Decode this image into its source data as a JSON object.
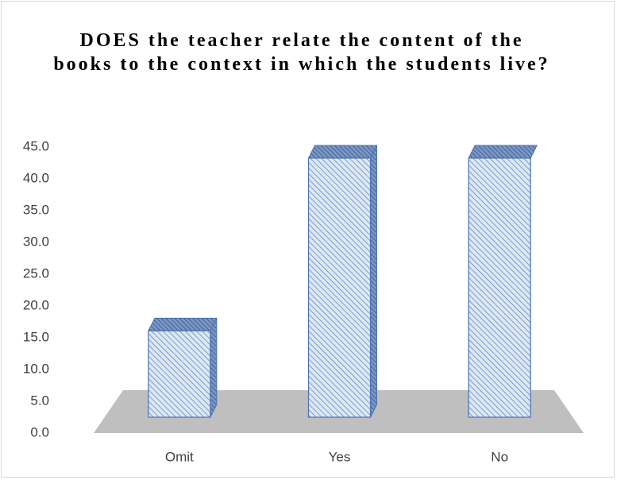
{
  "chart_data": {
    "type": "bar3d",
    "title": "DOES the teacher relate the content of the books to the context in which the students live?",
    "categories": [
      "Omit",
      "Yes",
      "No"
    ],
    "values": [
      14.3,
      42.9,
      42.9
    ],
    "color": "#4a72b0",
    "ylim": [
      0,
      45
    ],
    "yticks": [
      {
        "value": 0,
        "label": "0.0"
      },
      {
        "value": 5,
        "label": "5.0"
      },
      {
        "value": 10,
        "label": "10.0"
      },
      {
        "value": 15,
        "label": "15.0"
      },
      {
        "value": 20,
        "label": "20.0"
      },
      {
        "value": 25,
        "label": "25.0"
      },
      {
        "value": 30,
        "label": "30.0"
      },
      {
        "value": 35,
        "label": "35.0"
      },
      {
        "value": 40,
        "label": "40.0"
      },
      {
        "value": 45,
        "label": "45.0"
      }
    ]
  }
}
